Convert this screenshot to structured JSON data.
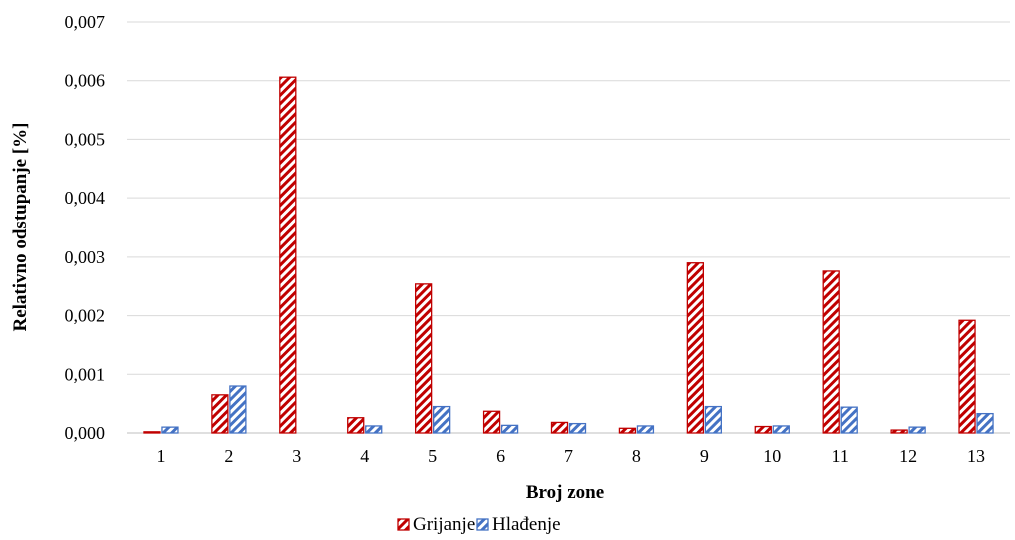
{
  "chart_data": {
    "type": "bar",
    "title": "",
    "xlabel": "Broj zone",
    "ylabel": "Relativno odstupanje [%]",
    "categories": [
      "1",
      "2",
      "3",
      "4",
      "5",
      "6",
      "7",
      "8",
      "9",
      "10",
      "11",
      "12",
      "13"
    ],
    "ylim": [
      0,
      0.007
    ],
    "yticks": [
      "0,000",
      "0,001",
      "0,002",
      "0,003",
      "0,004",
      "0,005",
      "0,006",
      "0,007"
    ],
    "grid": true,
    "legend_position": "bottom",
    "series": [
      {
        "name": "Grijanje",
        "color": "#c00000",
        "values": [
          2e-05,
          0.00065,
          0.00606,
          0.00026,
          0.00254,
          0.00037,
          0.00018,
          8e-05,
          0.0029,
          0.00011,
          0.00276,
          5e-05,
          0.00192
        ]
      },
      {
        "name": "Hlađenje",
        "color": "#4472c4",
        "values": [
          0.0001,
          0.0008,
          0.0,
          0.00012,
          0.00045,
          0.00013,
          0.00016,
          0.00012,
          0.00045,
          0.00012,
          0.00044,
          0.0001,
          0.00033
        ]
      }
    ]
  }
}
